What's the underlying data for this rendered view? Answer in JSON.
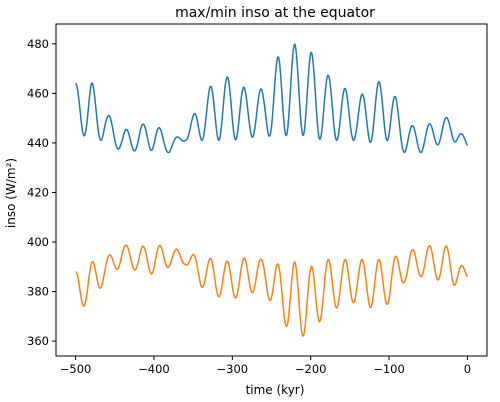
{
  "chart_data": {
    "type": "line",
    "title": "max/min inso at the equator",
    "xlabel": "time (kyr)",
    "ylabel": "inso (W/m²)",
    "xlim": [
      -525,
      25
    ],
    "ylim": [
      354,
      488
    ],
    "xticks": [
      -500,
      -400,
      -300,
      -200,
      -100,
      0
    ],
    "xtick_labels": [
      "−500",
      "−400",
      "−300",
      "−200",
      "−100",
      "0"
    ],
    "yticks": [
      360,
      380,
      400,
      420,
      440,
      460,
      480
    ],
    "ytick_labels": [
      "360",
      "380",
      "400",
      "420",
      "440",
      "460",
      "480"
    ],
    "grid": false,
    "x_step_kyr": 1,
    "series": [
      {
        "color": "#1f77b4",
        "line_width": 1.5,
        "envelope": {
          "x": [
            -500,
            -480,
            -460,
            -440,
            -420,
            -400,
            -380,
            -360,
            -340,
            -320,
            -300,
            -280,
            -260,
            -240,
            -220,
            -200,
            -180,
            -160,
            -140,
            -120,
            -100,
            -80,
            -60,
            -40,
            -20,
            0
          ],
          "peak": [
            464,
            465,
            452,
            445,
            447,
            449,
            441,
            444,
            458,
            466,
            467,
            461,
            462,
            476,
            480,
            477,
            468,
            463,
            458,
            464,
            466,
            448,
            446,
            449,
            451,
            440
          ],
          "trough": [
            445,
            441,
            441,
            436,
            437,
            437,
            436,
            441,
            441,
            441,
            441,
            442,
            443,
            442,
            444,
            442,
            441,
            441,
            441,
            440,
            441,
            436,
            436,
            439,
            441,
            438
          ]
        }
      },
      {
        "color": "#ff7f0e",
        "line_width": 1.5,
        "envelope": {
          "x": [
            -500,
            -480,
            -460,
            -440,
            -420,
            -400,
            -380,
            -360,
            -340,
            -320,
            -300,
            -280,
            -260,
            -240,
            -220,
            -200,
            -180,
            -160,
            -140,
            -120,
            -100,
            -80,
            -60,
            -40,
            -20,
            0
          ],
          "peak": [
            388,
            392,
            394,
            399,
            398,
            399,
            398,
            396,
            394,
            393,
            392,
            394,
            393,
            391,
            392,
            390,
            393,
            393,
            393,
            393,
            393,
            396,
            398,
            399,
            398,
            387
          ],
          "trough": [
            372,
            376,
            385,
            391,
            388,
            387,
            390,
            391,
            382,
            378,
            377,
            379,
            381,
            369,
            362,
            362,
            372,
            374,
            376,
            373,
            375,
            384,
            386,
            385,
            382,
            385
          ]
        }
      }
    ]
  }
}
